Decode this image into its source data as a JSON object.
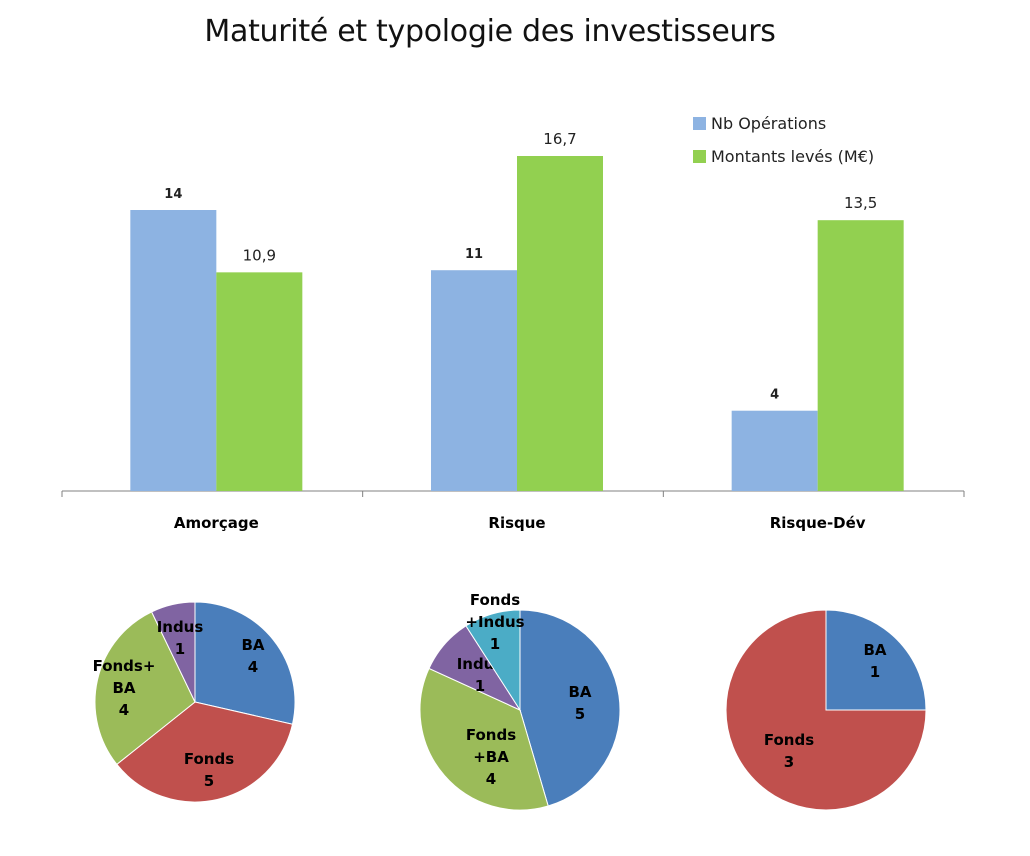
{
  "title": "Maturité et typologie des investisseurs",
  "colors": {
    "nb_operations": "#8db3e2",
    "montants": "#92d050",
    "pie_ba": "#4a7ebb",
    "pie_fonds": "#c0504d",
    "pie_fonds_ba": "#9bbb59",
    "pie_indus": "#8064a2",
    "pie_fonds_indus": "#4bacc6"
  },
  "chart_data": [
    {
      "type": "bar",
      "title": "Maturité et typologie des investisseurs",
      "categories": [
        "Amorçage",
        "Risque",
        "Risque-Dév"
      ],
      "series": [
        {
          "name": "Nb Opérations",
          "values": [
            14,
            11,
            4
          ],
          "labels": [
            "14",
            "11",
            "4"
          ]
        },
        {
          "name": "Montants levés  (M€)",
          "values": [
            10.9,
            16.7,
            13.5
          ],
          "labels": [
            "10,9",
            "16,7",
            "13,5"
          ]
        }
      ],
      "legend": "top-right",
      "grid": false
    },
    {
      "type": "pie",
      "slices": [
        {
          "name": "BA",
          "value": 4
        },
        {
          "name": "Fonds",
          "value": 5
        },
        {
          "name": "Fonds+ BA",
          "value": 4
        },
        {
          "name": "Indus",
          "value": 1
        }
      ]
    },
    {
      "type": "pie",
      "slices": [
        {
          "name": "BA",
          "value": 5
        },
        {
          "name": "Fonds +BA",
          "value": 4
        },
        {
          "name": "Indus",
          "value": 1
        },
        {
          "name": "Fonds +Indus",
          "value": 1
        }
      ]
    },
    {
      "type": "pie",
      "slices": [
        {
          "name": "BA",
          "value": 1
        },
        {
          "name": "Fonds",
          "value": 3
        }
      ]
    }
  ]
}
